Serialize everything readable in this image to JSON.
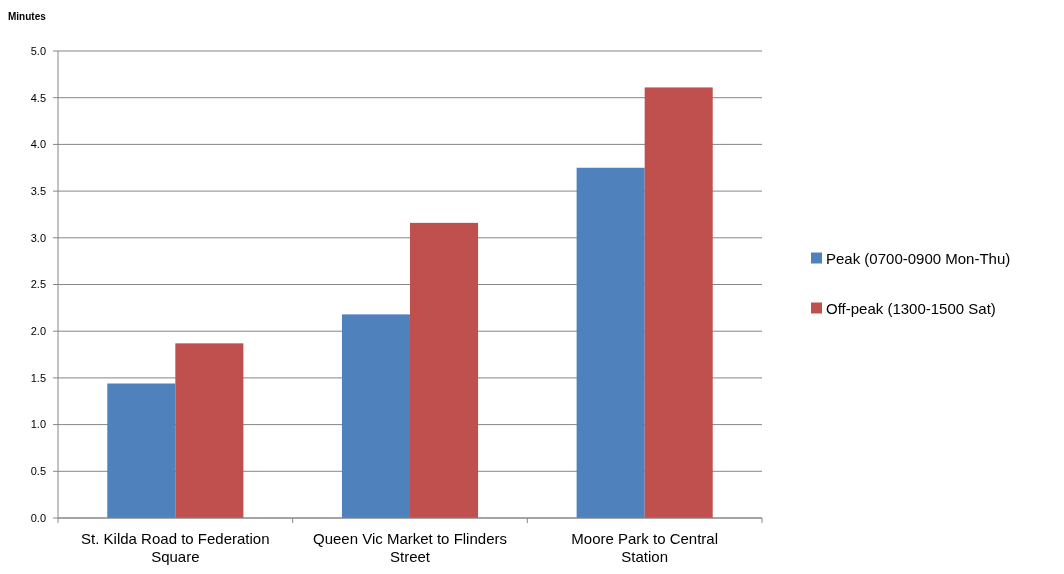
{
  "chart_data": {
    "type": "bar",
    "ylabel": "Minutes",
    "categories": [
      "St. Kilda Road to Federation Square",
      "Queen Vic Market to Flinders Street",
      "Moore Park to Central Station"
    ],
    "series": [
      {
        "name": "Peak (0700-0900 Mon-Thu)",
        "color": "#4f81bd",
        "values": [
          1.44,
          2.18,
          3.75
        ]
      },
      {
        "name": "Off-peak (1300-1500 Sat)",
        "color": "#c0504d",
        "values": [
          1.87,
          3.16,
          4.61
        ]
      }
    ],
    "ylim": [
      0,
      5
    ],
    "yticks": [
      {
        "value": 0,
        "label": "0.0"
      },
      {
        "value": 0.5,
        "label": "0.5"
      },
      {
        "value": 1,
        "label": "1.0"
      },
      {
        "value": 1.5,
        "label": "1.5"
      },
      {
        "value": 2,
        "label": "2.0"
      },
      {
        "value": 2.5,
        "label": "2.5"
      },
      {
        "value": 3,
        "label": "3.0"
      },
      {
        "value": 3.5,
        "label": "3.5"
      },
      {
        "value": 4,
        "label": "4.0"
      },
      {
        "value": 4.5,
        "label": "4.5"
      },
      {
        "value": 5,
        "label": "5.0"
      }
    ],
    "grid": "y",
    "legend": "right"
  }
}
